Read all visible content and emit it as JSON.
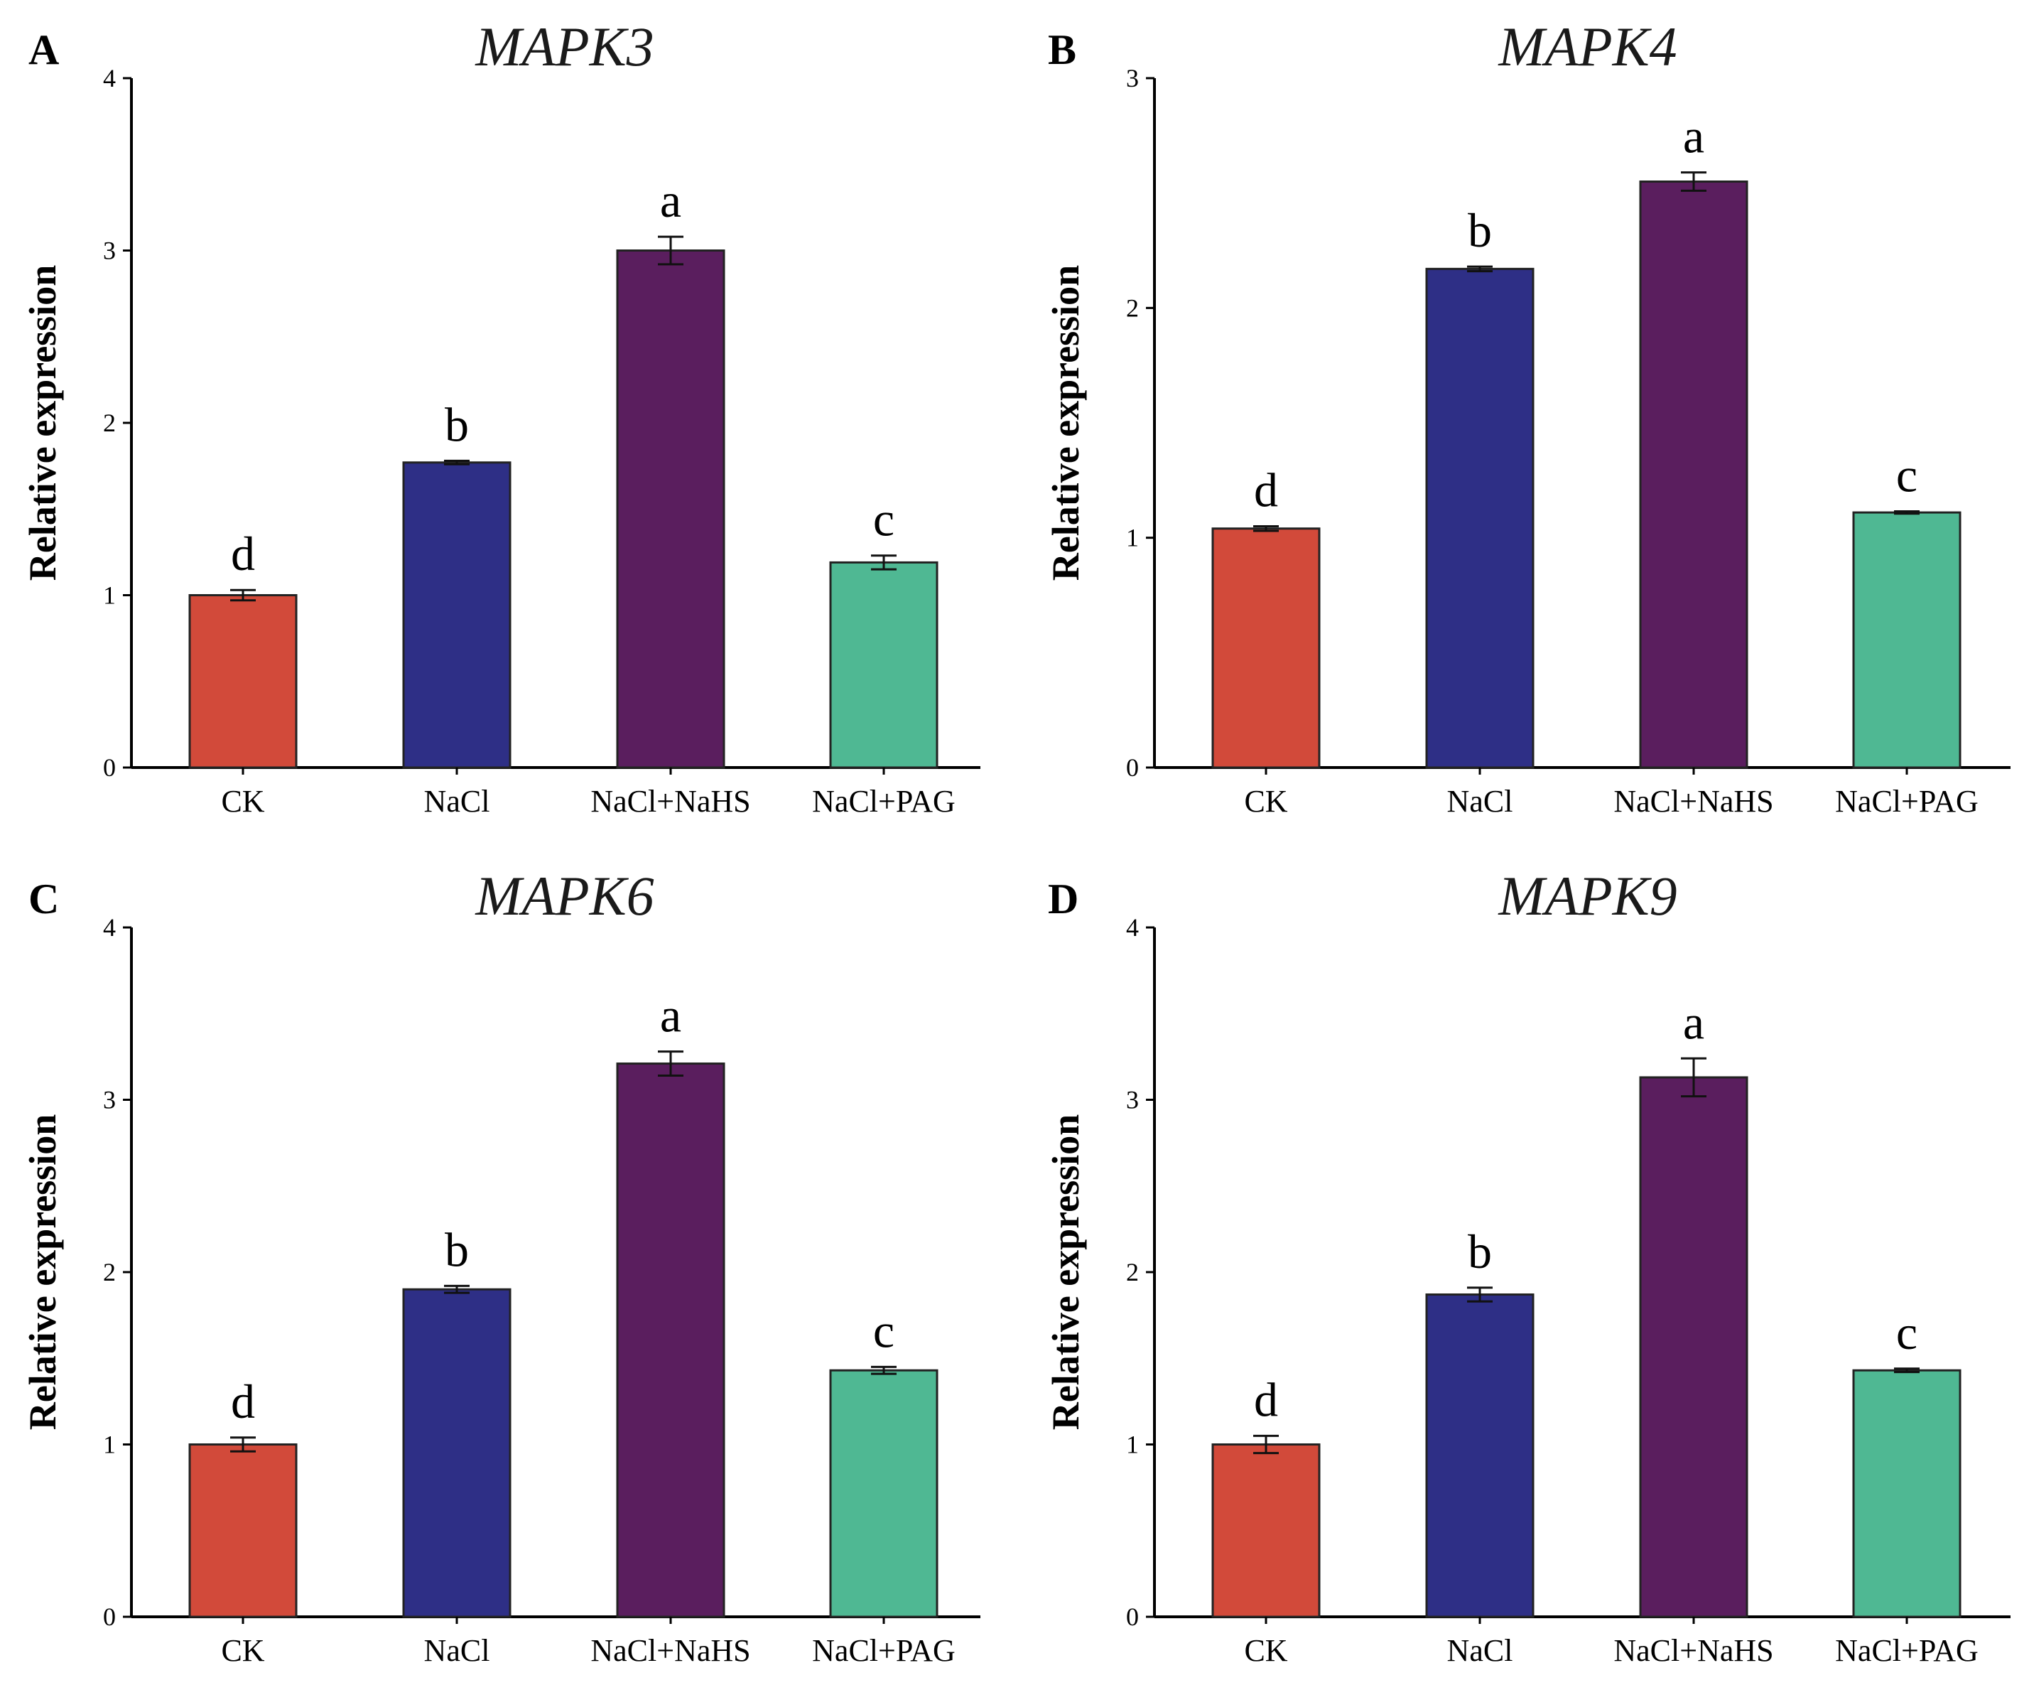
{
  "chart_data": [
    {
      "panel": "A",
      "title": "MAPK3",
      "type": "bar",
      "ylabel": "Relative expression",
      "xlabel": "",
      "ylim": [
        0,
        4
      ],
      "yticks": [
        0,
        1,
        2,
        3,
        4
      ],
      "categories": [
        "CK",
        "NaCl",
        "NaCl+NaHS",
        "NaCl+PAG"
      ],
      "values": [
        1.0,
        1.77,
        3.0,
        1.19
      ],
      "errors": [
        0.03,
        0.01,
        0.08,
        0.04
      ],
      "significance": [
        "d",
        "b",
        "a",
        "c"
      ]
    },
    {
      "panel": "B",
      "title": "MAPK4",
      "type": "bar",
      "ylabel": "Relative expression",
      "xlabel": "",
      "ylim": [
        0,
        3
      ],
      "yticks": [
        0,
        1,
        2,
        3
      ],
      "categories": [
        "CK",
        "NaCl",
        "NaCl+NaHS",
        "NaCl+PAG"
      ],
      "values": [
        1.04,
        2.17,
        2.55,
        1.11
      ],
      "errors": [
        0.01,
        0.01,
        0.04,
        0.005
      ],
      "significance": [
        "d",
        "b",
        "a",
        "c"
      ]
    },
    {
      "panel": "C",
      "title": "MAPK6",
      "type": "bar",
      "ylabel": "Relative expression",
      "xlabel": "",
      "ylim": [
        0,
        4
      ],
      "yticks": [
        0,
        1,
        2,
        3,
        4
      ],
      "categories": [
        "CK",
        "NaCl",
        "NaCl+NaHS",
        "NaCl+PAG"
      ],
      "values": [
        1.0,
        1.9,
        3.21,
        1.43
      ],
      "errors": [
        0.04,
        0.02,
        0.07,
        0.02
      ],
      "significance": [
        "d",
        "b",
        "a",
        "c"
      ]
    },
    {
      "panel": "D",
      "title": "MAPK9",
      "type": "bar",
      "ylabel": "Relative expression",
      "xlabel": "",
      "ylim": [
        0,
        4
      ],
      "yticks": [
        0,
        1,
        2,
        3,
        4
      ],
      "categories": [
        "CK",
        "NaCl",
        "NaCl+NaHS",
        "NaCl+PAG"
      ],
      "values": [
        1.0,
        1.87,
        3.13,
        1.43
      ],
      "errors": [
        0.05,
        0.04,
        0.11,
        0.01
      ],
      "significance": [
        "d",
        "b",
        "a",
        "c"
      ]
    }
  ],
  "colors": {
    "bars": [
      "#d24a3a",
      "#2e2f86",
      "#5a1e5e",
      "#4fb893"
    ]
  }
}
